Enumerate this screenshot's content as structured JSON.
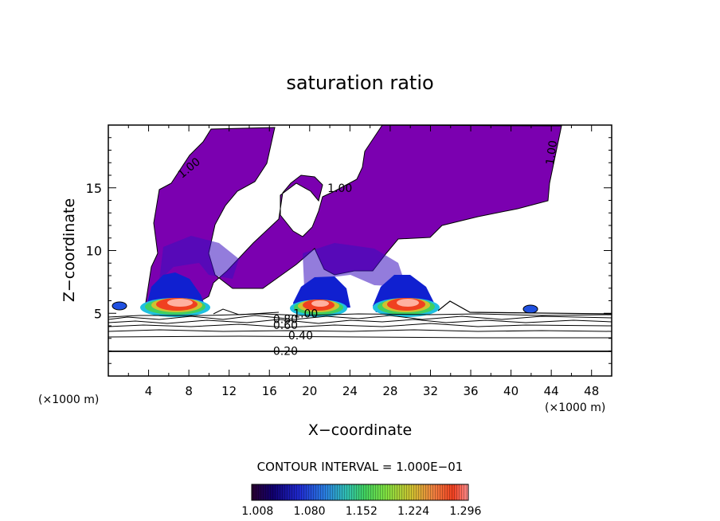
{
  "chart_data": {
    "type": "contour",
    "title": "saturation ratio",
    "xlabel": "X−coordinate",
    "ylabel": "Z−coordinate",
    "x_unit": "(×1000 m)",
    "z_unit": "(×1000 m)",
    "xlim": [
      0,
      50
    ],
    "ylim": [
      0,
      20
    ],
    "x_ticks": [
      4,
      8,
      12,
      16,
      20,
      24,
      28,
      32,
      36,
      40,
      44,
      48
    ],
    "y_ticks": [
      5,
      10,
      15
    ],
    "contour_interval_label": "CONTOUR INTERVAL = 1.000E−01",
    "contour_line_levels": [
      0.1,
      0.2,
      0.3,
      0.4,
      0.5,
      0.6,
      0.7,
      0.8,
      0.9,
      1.0
    ],
    "contour_labels": [
      {
        "text": "0.20",
        "x": 17.6,
        "z": 2.0,
        "rotate": 0
      },
      {
        "text": "0.40",
        "x": 19.1,
        "z": 3.25,
        "rotate": 0
      },
      {
        "text": "0.60",
        "x": 17.6,
        "z": 4.05,
        "rotate": 0
      },
      {
        "text": "0.80",
        "x": 17.6,
        "z": 4.55,
        "rotate": 0
      },
      {
        "text": "1.00",
        "x": 19.6,
        "z": 5.0,
        "rotate": 0
      },
      {
        "text": "1.00",
        "x": 23.0,
        "z": 15.0,
        "rotate": 0
      },
      {
        "text": "1.00",
        "x": 8.0,
        "z": 16.6,
        "rotate": -40
      },
      {
        "text": "1.00",
        "x": 44.0,
        "z": 17.8,
        "rotate": -82
      }
    ],
    "colorbar": {
      "tick_labels": [
        "1.008",
        "1.080",
        "1.152",
        "1.224",
        "1.296"
      ],
      "range": [
        1.0,
        1.3
      ],
      "colors": [
        "#2a0030",
        "#100070",
        "#1f2ad0",
        "#2a7fe0",
        "#30c0b0",
        "#40d060",
        "#80e040",
        "#d0c030",
        "#f08040",
        "#f04020",
        "#ff9090"
      ]
    },
    "fill_color": "#7b00b0"
  }
}
